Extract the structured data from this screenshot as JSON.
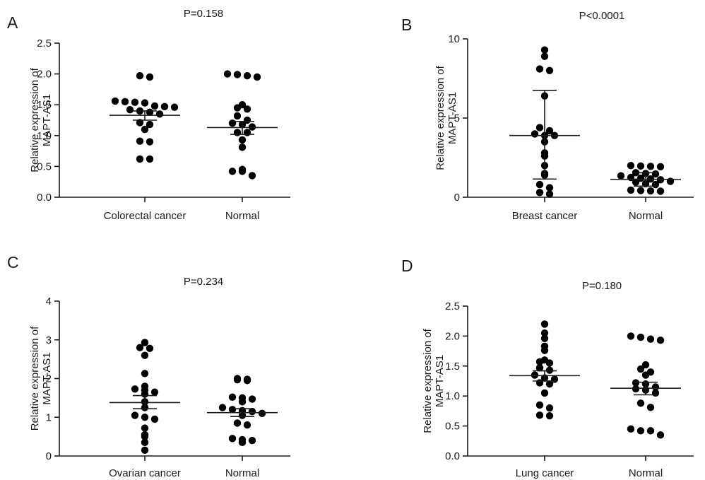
{
  "ylabel_line1": "Relative expression of",
  "ylabel_line2": "MAPT-AS1",
  "chart_data": [
    {
      "type": "scatter",
      "panel": "A",
      "title": "P=0.158",
      "categories": [
        "Colorectal cancer",
        "Normal"
      ],
      "ylim": [
        0,
        2.5
      ],
      "yticks": [
        "0.0",
        "0.5",
        "1.0",
        "1.5",
        "2.0",
        "2.5"
      ],
      "series": [
        {
          "values": [
            1.97,
            1.95,
            1.56,
            1.55,
            1.54,
            1.53,
            1.48,
            1.47,
            1.46,
            1.42,
            1.4,
            1.38,
            1.35,
            1.21,
            1.18,
            1.1,
            0.91,
            0.9,
            0.62,
            0.62
          ],
          "mean": 1.33,
          "err": [
            1.25,
            1.4
          ]
        },
        {
          "values": [
            2.0,
            1.99,
            1.97,
            1.95,
            1.5,
            1.45,
            1.43,
            1.32,
            1.25,
            1.2,
            1.18,
            1.14,
            1.05,
            1.05,
            0.93,
            0.81,
            0.45,
            0.42,
            0.42,
            0.35
          ],
          "mean": 1.13,
          "err": [
            1.02,
            1.23
          ]
        }
      ]
    },
    {
      "type": "scatter",
      "panel": "B",
      "title": "P<0.0001",
      "categories": [
        "Breast cancer",
        "Normal"
      ],
      "ylim": [
        0,
        10
      ],
      "yticks": [
        "0",
        "5",
        "10"
      ],
      "series": [
        {
          "values": [
            9.3,
            8.9,
            8.1,
            8.0,
            6.4,
            4.4,
            4.2,
            4.0,
            3.9,
            3.9,
            3.5,
            2.8,
            2.6,
            2.0,
            1.5,
            1.4,
            0.8,
            0.6,
            0.3,
            0.2
          ],
          "mean": 3.9,
          "err": [
            1.15,
            6.75
          ]
        },
        {
          "values": [
            2.0,
            1.97,
            1.95,
            1.93,
            1.55,
            1.5,
            1.47,
            1.35,
            1.25,
            1.2,
            1.15,
            1.1,
            1.0,
            0.95,
            0.85,
            0.8,
            0.45,
            0.42,
            0.4,
            0.38
          ],
          "mean": 1.13,
          "err": [
            0.7,
            1.55
          ]
        }
      ]
    },
    {
      "type": "scatter",
      "panel": "C",
      "title": "P=0.234",
      "categories": [
        "Ovarian cancer",
        "Normal"
      ],
      "ylim": [
        0,
        4
      ],
      "yticks": [
        "0",
        "1",
        "2",
        "3",
        "4"
      ],
      "series": [
        {
          "values": [
            2.93,
            2.8,
            2.78,
            2.6,
            2.13,
            1.8,
            1.73,
            1.7,
            1.65,
            1.6,
            1.4,
            1.25,
            1.05,
            1.0,
            0.95,
            0.72,
            0.55,
            0.5,
            0.35,
            0.15
          ],
          "mean": 1.38,
          "err": [
            1.22,
            1.56
          ]
        },
        {
          "values": [
            2.0,
            1.98,
            1.97,
            1.95,
            1.52,
            1.5,
            1.47,
            1.4,
            1.25,
            1.2,
            1.17,
            1.15,
            1.1,
            1.05,
            0.85,
            0.8,
            0.45,
            0.42,
            0.4,
            0.35
          ],
          "mean": 1.12,
          "err": [
            1.02,
            1.22
          ]
        }
      ]
    },
    {
      "type": "scatter",
      "panel": "D",
      "title": "P=0.180",
      "categories": [
        "Lung cancer",
        "Normal"
      ],
      "ylim": [
        0,
        2.5
      ],
      "yticks": [
        "0.0",
        "0.5",
        "1.0",
        "1.5",
        "2.0",
        "2.5"
      ],
      "series": [
        {
          "values": [
            2.2,
            2.05,
            1.96,
            1.83,
            1.76,
            1.6,
            1.57,
            1.55,
            1.47,
            1.43,
            1.35,
            1.3,
            1.28,
            1.22,
            1.2,
            1.05,
            0.85,
            0.8,
            0.68,
            0.67
          ],
          "mean": 1.34,
          "err": [
            1.25,
            1.42
          ]
        },
        {
          "values": [
            2.0,
            1.98,
            1.95,
            1.93,
            1.52,
            1.45,
            1.4,
            1.35,
            1.22,
            1.2,
            1.15,
            1.12,
            1.1,
            1.05,
            0.88,
            0.81,
            0.45,
            0.42,
            0.42,
            0.35
          ],
          "mean": 1.13,
          "err": [
            1.02,
            1.23
          ]
        }
      ]
    }
  ]
}
